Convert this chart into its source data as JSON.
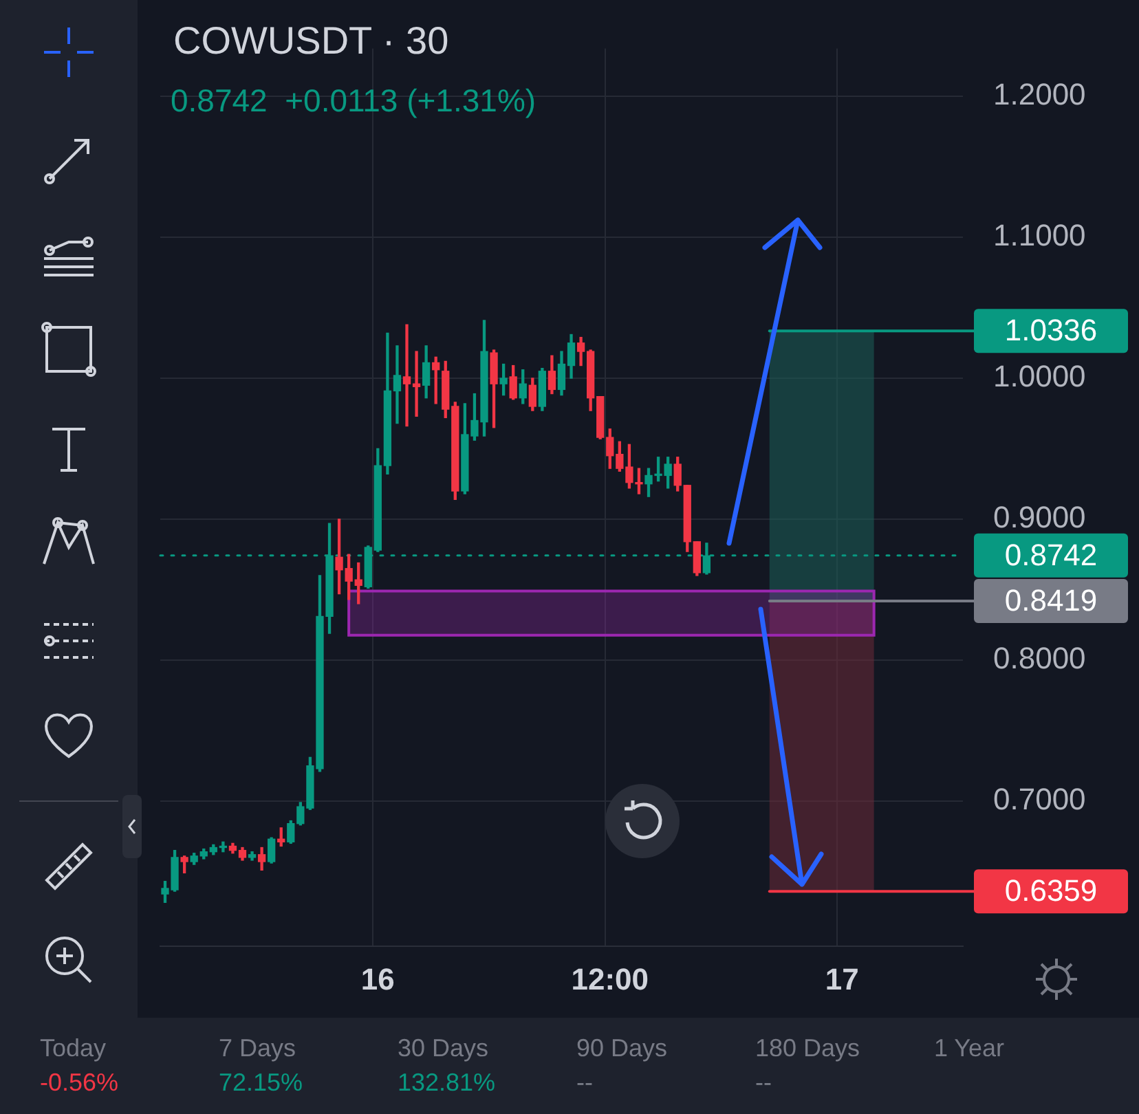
{
  "chart_data": {
    "type": "candlestick",
    "title": "COWUSDT · 30",
    "subtitle": "0.8742  +0.0113 (+1.31%)",
    "categories": [
      null,
      null,
      null,
      null,
      null,
      null,
      null,
      null,
      null,
      null,
      null,
      null,
      null,
      null,
      null,
      null,
      null,
      null,
      null,
      null,
      null,
      null,
      "16",
      null,
      null,
      null,
      null,
      null,
      null,
      null,
      null,
      null,
      null,
      null,
      null,
      null,
      null,
      null,
      null,
      null,
      null,
      null,
      null,
      null,
      null,
      null,
      "12:00",
      null,
      null,
      null,
      null,
      null,
      null,
      null,
      null,
      null,
      null,
      null,
      null,
      null,
      null,
      null,
      null,
      null,
      null,
      null,
      null,
      null,
      null,
      null,
      "17",
      null,
      null,
      null,
      null,
      null,
      null,
      null,
      null,
      null,
      null,
      null,
      null
    ],
    "ohlc": [
      [
        0.634,
        0.643,
        0.628,
        0.638
      ],
      [
        0.637,
        0.665,
        0.636,
        0.66
      ],
      [
        0.66,
        0.661,
        0.649,
        0.657
      ],
      [
        0.657,
        0.663,
        0.655,
        0.661
      ],
      [
        0.661,
        0.666,
        0.659,
        0.664
      ],
      [
        0.664,
        0.669,
        0.662,
        0.667
      ],
      [
        0.667,
        0.671,
        0.664,
        0.668
      ],
      [
        0.668,
        0.67,
        0.663,
        0.665
      ],
      [
        0.665,
        0.667,
        0.658,
        0.66
      ],
      [
        0.66,
        0.664,
        0.658,
        0.662
      ],
      [
        0.662,
        0.667,
        0.651,
        0.657
      ],
      [
        0.657,
        0.674,
        0.656,
        0.673
      ],
      [
        0.673,
        0.681,
        0.668,
        0.671
      ],
      [
        0.671,
        0.686,
        0.67,
        0.684
      ],
      [
        0.684,
        0.699,
        0.683,
        0.696
      ],
      [
        0.695,
        0.731,
        0.694,
        0.725
      ],
      [
        0.723,
        0.86,
        0.721,
        0.831
      ],
      [
        0.831,
        0.897,
        0.819,
        0.874
      ],
      [
        0.873,
        0.9,
        0.847,
        0.864
      ],
      [
        0.865,
        0.875,
        0.843,
        0.856
      ],
      [
        0.857,
        0.869,
        0.84,
        0.853
      ],
      [
        0.852,
        0.881,
        0.851,
        0.88
      ],
      [
        0.878,
        0.95,
        0.877,
        0.938
      ],
      [
        0.938,
        1.032,
        0.932,
        0.991
      ],
      [
        0.991,
        1.023,
        0.968,
        1.002
      ],
      [
        1.001,
        1.038,
        0.966,
        0.996
      ],
      [
        0.996,
        1.019,
        0.973,
        0.994
      ],
      [
        0.995,
        1.023,
        0.986,
        1.011
      ],
      [
        1.011,
        1.015,
        0.982,
        1.006
      ],
      [
        1.005,
        1.012,
        0.972,
        0.978
      ],
      [
        0.98,
        0.983,
        0.914,
        0.92
      ],
      [
        0.92,
        0.982,
        0.918,
        0.96
      ],
      [
        0.959,
        0.989,
        0.956,
        0.97
      ],
      [
        0.969,
        1.041,
        0.959,
        1.019
      ],
      [
        1.018,
        1.02,
        0.965,
        0.996
      ],
      [
        0.996,
        1.01,
        0.988,
        1.0
      ],
      [
        1.001,
        1.009,
        0.985,
        0.986
      ],
      [
        0.986,
        1.006,
        0.982,
        0.996
      ],
      [
        0.995,
        1.0,
        0.977,
        0.98
      ],
      [
        0.98,
        1.007,
        0.977,
        1.005
      ],
      [
        1.005,
        1.016,
        0.989,
        0.992
      ],
      [
        0.992,
        1.019,
        0.988,
        1.01
      ],
      [
        1.009,
        1.031,
        1.0,
        1.025
      ],
      [
        1.025,
        1.029,
        1.009,
        1.019
      ],
      [
        1.019,
        1.02,
        0.977,
        0.986
      ],
      [
        0.987,
        0.987,
        0.957,
        0.958
      ],
      [
        0.958,
        0.964,
        0.936,
        0.945
      ],
      [
        0.946,
        0.955,
        0.934,
        0.936
      ],
      [
        0.937,
        0.953,
        0.922,
        0.926
      ],
      [
        0.926,
        0.936,
        0.918,
        0.925
      ],
      [
        0.925,
        0.936,
        0.916,
        0.931
      ],
      [
        0.931,
        0.944,
        0.927,
        0.932
      ],
      [
        0.931,
        0.944,
        0.922,
        0.939
      ],
      [
        0.939,
        0.944,
        0.92,
        0.924
      ],
      [
        0.924,
        0.924,
        0.877,
        0.884
      ],
      [
        0.884,
        0.884,
        0.86,
        0.862
      ],
      [
        0.862,
        0.883,
        0.861,
        0.874
      ],
      null,
      null,
      null,
      null,
      null,
      null,
      null,
      null,
      null,
      null,
      null,
      null,
      null,
      null,
      null,
      null,
      null,
      null,
      null,
      null,
      null,
      null,
      null,
      null,
      null,
      null
    ],
    "ylim": [
      0.597,
      1.234
    ],
    "yticks": [
      {
        "value": 0.7,
        "label": "0.7000"
      },
      {
        "value": 0.8,
        "label": "0.8000"
      },
      {
        "value": 0.9,
        "label": "0.9000"
      },
      {
        "value": 1.0,
        "label": "1.0000"
      },
      {
        "value": 1.1,
        "label": "1.1000"
      },
      {
        "value": 1.2,
        "label": "1.2000"
      }
    ],
    "grid": true,
    "legend": false,
    "ref_lines": [
      {
        "axis": "y",
        "value": 0.8742,
        "label": "0.8742",
        "color": "#089981",
        "line_style": "dotted"
      },
      {
        "axis": "y",
        "value": 1.0336,
        "label": "1.0336",
        "color": "#089981",
        "line_style": "solid"
      },
      {
        "axis": "y",
        "value": 0.8419,
        "label": "0.8419",
        "color": "#787b86",
        "line_style": "solid"
      },
      {
        "axis": "y",
        "value": 0.6359,
        "label": "0.6359",
        "color": "#f23645",
        "line_style": "solid"
      }
    ],
    "bands": [
      {
        "axis": "y",
        "from": 0.8419,
        "to": 1.0336,
        "color": "#1b5e57"
      },
      {
        "axis": "y",
        "from": 0.6359,
        "to": 0.8419,
        "color": "#6b2a38"
      },
      {
        "axis": "y",
        "from": 0.8176,
        "to": 0.849,
        "color": "#9c27b0"
      }
    ],
    "annotations": [
      "Today",
      "-0.56%",
      "7 Days",
      "72.15%",
      "30 Days",
      "132.81%",
      "90 Days",
      "--",
      "180 Days",
      "--",
      "1 Year"
    ]
  }
}
